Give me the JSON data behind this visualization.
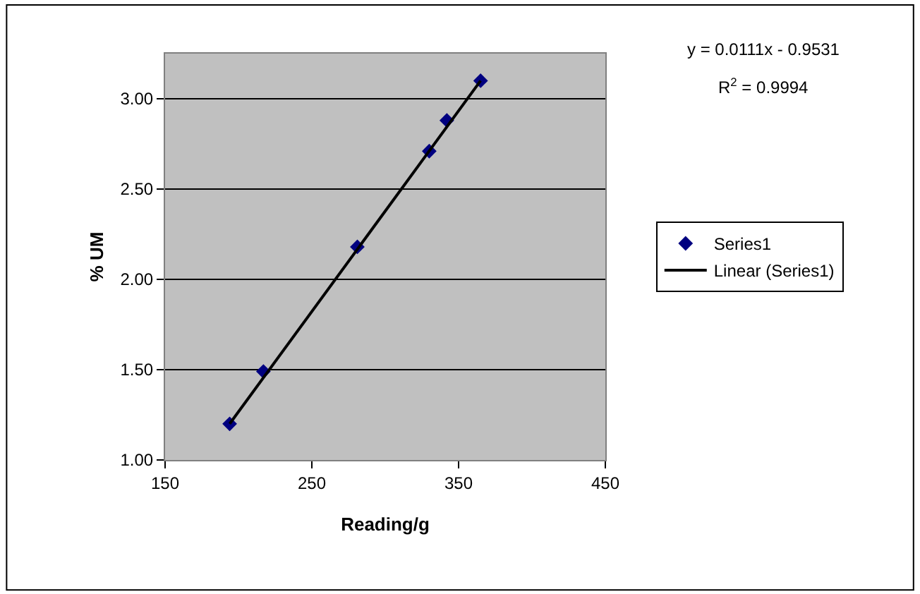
{
  "chart_data": {
    "type": "scatter",
    "xlabel": "Reading/g",
    "ylabel": "% UM",
    "annotations": [
      "y = 0.0111x - 0.9531",
      "R$^{2}$ = 0.9994"
    ],
    "series": [
      {
        "name": "Series1",
        "color": "#000080",
        "marker": "diamond",
        "x": [
          194,
          217,
          281,
          330,
          342,
          365
        ],
        "values": [
          1.2,
          1.49,
          2.18,
          2.71,
          2.88,
          3.1
        ]
      },
      {
        "name": "Linear (Series1)",
        "type": "line",
        "color": "#000000",
        "marker": "none",
        "line_style": "solid",
        "x": [
          194,
          365
        ],
        "values": [
          1.2,
          3.1
        ]
      }
    ],
    "xlim": [
      150,
      450
    ],
    "xticks": [
      150,
      250,
      350,
      450
    ],
    "ylim": [
      1,
      3.25
    ],
    "yticks": [
      {
        "value": 1,
        "label": "1.00"
      },
      {
        "value": 1.5,
        "label": "1.50"
      },
      {
        "value": 2,
        "label": "2.00"
      },
      {
        "value": 2.5,
        "label": "2.50"
      },
      {
        "value": 3,
        "label": "3.00"
      }
    ],
    "grid": "y",
    "legend": "right"
  }
}
